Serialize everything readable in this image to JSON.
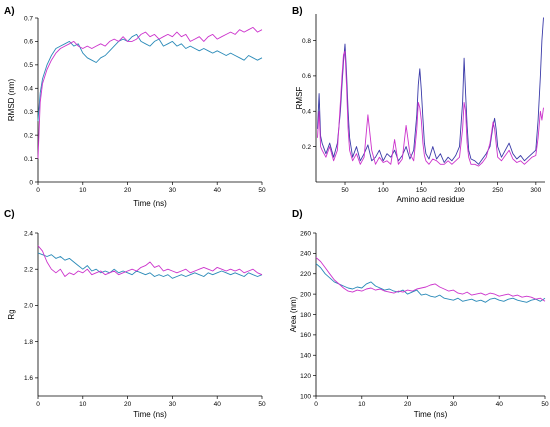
{
  "colors": {
    "series_magenta": "#cc33cc",
    "series_teal": "#2a8ab8",
    "series_navy": "#3a3aa8"
  },
  "chart_data": [
    {
      "panel_label": "A)",
      "type": "line",
      "xlabel": "Time (ns)",
      "ylabel": "RMSD (nm)",
      "xlim": [
        0,
        50
      ],
      "ylim": [
        0,
        0.7
      ],
      "xticks": [
        0,
        10,
        20,
        30,
        40,
        50
      ],
      "yticks": [
        0,
        0.1,
        0.2,
        0.3,
        0.4,
        0.5,
        0.6,
        0.7
      ],
      "series": [
        {
          "color": "#2a8ab8",
          "x": [
            0,
            0.5,
            1,
            2,
            3,
            4,
            5,
            6,
            7,
            8,
            9,
            10,
            11,
            12,
            13,
            14,
            15,
            16,
            17,
            18,
            19,
            20,
            21,
            22,
            23,
            24,
            25,
            26,
            27,
            28,
            29,
            30,
            31,
            32,
            33,
            34,
            35,
            36,
            37,
            38,
            39,
            40,
            41,
            42,
            43,
            44,
            45,
            46,
            47,
            48,
            49,
            50
          ],
          "y": [
            0.26,
            0.38,
            0.44,
            0.5,
            0.54,
            0.57,
            0.58,
            0.59,
            0.6,
            0.58,
            0.59,
            0.55,
            0.53,
            0.52,
            0.51,
            0.53,
            0.54,
            0.56,
            0.58,
            0.6,
            0.61,
            0.6,
            0.62,
            0.63,
            0.6,
            0.59,
            0.58,
            0.6,
            0.61,
            0.58,
            0.59,
            0.6,
            0.58,
            0.59,
            0.57,
            0.58,
            0.57,
            0.56,
            0.57,
            0.56,
            0.55,
            0.56,
            0.55,
            0.54,
            0.55,
            0.54,
            0.53,
            0.52,
            0.54,
            0.53,
            0.52,
            0.53
          ]
        },
        {
          "color": "#cc33cc",
          "x": [
            0,
            0.5,
            1,
            2,
            3,
            4,
            5,
            6,
            7,
            8,
            9,
            10,
            11,
            12,
            13,
            14,
            15,
            16,
            17,
            18,
            19,
            20,
            21,
            22,
            23,
            24,
            25,
            26,
            27,
            28,
            29,
            30,
            31,
            32,
            33,
            34,
            35,
            36,
            37,
            38,
            39,
            40,
            41,
            42,
            43,
            44,
            45,
            46,
            47,
            48,
            49,
            50
          ],
          "y": [
            0.1,
            0.34,
            0.42,
            0.48,
            0.52,
            0.55,
            0.57,
            0.58,
            0.59,
            0.6,
            0.58,
            0.57,
            0.58,
            0.57,
            0.58,
            0.59,
            0.58,
            0.6,
            0.61,
            0.6,
            0.62,
            0.6,
            0.6,
            0.61,
            0.63,
            0.64,
            0.62,
            0.63,
            0.61,
            0.62,
            0.63,
            0.62,
            0.64,
            0.62,
            0.63,
            0.6,
            0.61,
            0.62,
            0.6,
            0.62,
            0.63,
            0.61,
            0.62,
            0.63,
            0.64,
            0.63,
            0.65,
            0.64,
            0.65,
            0.66,
            0.64,
            0.65
          ]
        }
      ]
    },
    {
      "panel_label": "B)",
      "type": "line",
      "xlabel": "Amino acid residue",
      "ylabel": "RMSF",
      "xlim": [
        12,
        312
      ],
      "ylim": [
        0,
        0.95
      ],
      "xticks": [
        50,
        100,
        150,
        200,
        250,
        300
      ],
      "yticks": [
        0.2,
        0.4,
        0.6,
        0.8
      ],
      "series": [
        {
          "color": "#3a3aa8",
          "x": [
            14,
            16,
            18,
            20,
            25,
            30,
            35,
            40,
            44,
            46,
            48,
            50,
            52,
            54,
            56,
            60,
            65,
            70,
            75,
            80,
            85,
            90,
            95,
            100,
            105,
            110,
            115,
            120,
            125,
            130,
            135,
            140,
            144,
            146,
            148,
            150,
            152,
            154,
            156,
            160,
            165,
            170,
            175,
            180,
            185,
            190,
            195,
            200,
            204,
            206,
            208,
            210,
            212,
            215,
            220,
            225,
            230,
            235,
            240,
            244,
            246,
            248,
            250,
            255,
            260,
            265,
            270,
            275,
            280,
            285,
            290,
            295,
            300,
            303,
            306,
            308,
            310
          ],
          "y": [
            0.3,
            0.5,
            0.26,
            0.22,
            0.16,
            0.22,
            0.14,
            0.22,
            0.4,
            0.55,
            0.68,
            0.78,
            0.62,
            0.4,
            0.25,
            0.14,
            0.2,
            0.12,
            0.16,
            0.21,
            0.12,
            0.14,
            0.18,
            0.12,
            0.16,
            0.14,
            0.18,
            0.12,
            0.15,
            0.2,
            0.13,
            0.18,
            0.38,
            0.55,
            0.64,
            0.52,
            0.36,
            0.22,
            0.16,
            0.13,
            0.2,
            0.13,
            0.16,
            0.11,
            0.14,
            0.12,
            0.15,
            0.2,
            0.45,
            0.7,
            0.5,
            0.32,
            0.18,
            0.13,
            0.12,
            0.1,
            0.13,
            0.16,
            0.2,
            0.32,
            0.36,
            0.3,
            0.2,
            0.14,
            0.18,
            0.22,
            0.16,
            0.13,
            0.15,
            0.12,
            0.14,
            0.16,
            0.18,
            0.35,
            0.6,
            0.8,
            0.93
          ]
        },
        {
          "color": "#cc33cc",
          "x": [
            14,
            16,
            18,
            20,
            25,
            30,
            35,
            40,
            44,
            46,
            48,
            50,
            52,
            54,
            56,
            60,
            65,
            70,
            75,
            80,
            85,
            90,
            95,
            100,
            105,
            110,
            115,
            120,
            125,
            130,
            135,
            140,
            144,
            146,
            148,
            150,
            152,
            154,
            156,
            160,
            165,
            170,
            175,
            180,
            185,
            190,
            195,
            200,
            204,
            206,
            208,
            210,
            212,
            215,
            220,
            225,
            230,
            235,
            240,
            244,
            246,
            248,
            250,
            255,
            260,
            265,
            270,
            275,
            280,
            285,
            290,
            295,
            300,
            303,
            306,
            308,
            310
          ],
          "y": [
            0.25,
            0.4,
            0.2,
            0.18,
            0.14,
            0.2,
            0.12,
            0.18,
            0.45,
            0.6,
            0.72,
            0.74,
            0.55,
            0.3,
            0.18,
            0.12,
            0.16,
            0.1,
            0.14,
            0.38,
            0.18,
            0.1,
            0.14,
            0.11,
            0.12,
            0.1,
            0.24,
            0.1,
            0.13,
            0.32,
            0.16,
            0.12,
            0.3,
            0.45,
            0.42,
            0.35,
            0.22,
            0.15,
            0.12,
            0.1,
            0.13,
            0.12,
            0.1,
            0.1,
            0.12,
            0.1,
            0.12,
            0.14,
            0.3,
            0.45,
            0.4,
            0.22,
            0.14,
            0.1,
            0.1,
            0.09,
            0.11,
            0.14,
            0.22,
            0.34,
            0.3,
            0.22,
            0.14,
            0.12,
            0.15,
            0.18,
            0.13,
            0.11,
            0.12,
            0.1,
            0.12,
            0.14,
            0.15,
            0.25,
            0.4,
            0.35,
            0.42
          ]
        }
      ]
    },
    {
      "panel_label": "C)",
      "type": "line",
      "xlabel": "Time (ns)",
      "ylabel": "Rg",
      "xlim": [
        0,
        50
      ],
      "ylim": [
        1.5,
        2.4
      ],
      "xticks": [
        0,
        10,
        20,
        30,
        40,
        50
      ],
      "yticks": [
        1.6,
        1.8,
        2.0,
        2.2,
        2.4
      ],
      "series": [
        {
          "color": "#2a8ab8",
          "x": [
            0,
            1,
            2,
            3,
            4,
            5,
            6,
            7,
            8,
            9,
            10,
            11,
            12,
            13,
            14,
            15,
            16,
            17,
            18,
            19,
            20,
            21,
            22,
            23,
            24,
            25,
            26,
            27,
            28,
            29,
            30,
            31,
            32,
            33,
            34,
            35,
            36,
            37,
            38,
            39,
            40,
            41,
            42,
            43,
            44,
            45,
            46,
            47,
            48,
            49,
            50
          ],
          "y": [
            2.29,
            2.28,
            2.27,
            2.28,
            2.26,
            2.27,
            2.25,
            2.26,
            2.24,
            2.22,
            2.2,
            2.22,
            2.19,
            2.2,
            2.18,
            2.19,
            2.18,
            2.2,
            2.18,
            2.19,
            2.18,
            2.17,
            2.19,
            2.18,
            2.17,
            2.18,
            2.16,
            2.17,
            2.16,
            2.17,
            2.15,
            2.16,
            2.17,
            2.16,
            2.17,
            2.18,
            2.17,
            2.16,
            2.18,
            2.17,
            2.18,
            2.19,
            2.18,
            2.17,
            2.18,
            2.17,
            2.16,
            2.18,
            2.17,
            2.16,
            2.17
          ]
        },
        {
          "color": "#cc33cc",
          "x": [
            0,
            1,
            2,
            3,
            4,
            5,
            6,
            7,
            8,
            9,
            10,
            11,
            12,
            13,
            14,
            15,
            16,
            17,
            18,
            19,
            20,
            21,
            22,
            23,
            24,
            25,
            26,
            27,
            28,
            29,
            30,
            31,
            32,
            33,
            34,
            35,
            36,
            37,
            38,
            39,
            40,
            41,
            42,
            43,
            44,
            45,
            46,
            47,
            48,
            49,
            50
          ],
          "y": [
            2.33,
            2.3,
            2.24,
            2.2,
            2.18,
            2.2,
            2.16,
            2.18,
            2.17,
            2.19,
            2.18,
            2.2,
            2.17,
            2.18,
            2.19,
            2.17,
            2.18,
            2.19,
            2.17,
            2.18,
            2.19,
            2.2,
            2.19,
            2.21,
            2.22,
            2.24,
            2.21,
            2.22,
            2.19,
            2.2,
            2.19,
            2.18,
            2.19,
            2.2,
            2.18,
            2.19,
            2.2,
            2.21,
            2.2,
            2.19,
            2.21,
            2.2,
            2.19,
            2.2,
            2.19,
            2.2,
            2.18,
            2.19,
            2.2,
            2.18,
            2.17
          ]
        }
      ]
    },
    {
      "panel_label": "D)",
      "type": "line",
      "xlabel": "Time (ns)",
      "ylabel": "Area (nm)",
      "xlim": [
        0,
        50
      ],
      "ylim": [
        100,
        260
      ],
      "xticks": [
        0,
        10,
        20,
        30,
        40,
        50
      ],
      "yticks": [
        100,
        120,
        140,
        160,
        180,
        200,
        220,
        240,
        260
      ],
      "series": [
        {
          "color": "#2a8ab8",
          "x": [
            0,
            1,
            2,
            3,
            4,
            5,
            6,
            7,
            8,
            9,
            10,
            11,
            12,
            13,
            14,
            15,
            16,
            17,
            18,
            19,
            20,
            21,
            22,
            23,
            24,
            25,
            26,
            27,
            28,
            29,
            30,
            31,
            32,
            33,
            34,
            35,
            36,
            37,
            38,
            39,
            40,
            41,
            42,
            43,
            44,
            45,
            46,
            47,
            48,
            49,
            50
          ],
          "y": [
            230,
            226,
            220,
            216,
            212,
            210,
            208,
            206,
            205,
            207,
            206,
            210,
            212,
            208,
            206,
            204,
            205,
            203,
            202,
            204,
            200,
            202,
            204,
            199,
            200,
            198,
            197,
            199,
            196,
            195,
            194,
            196,
            193,
            194,
            195,
            193,
            194,
            192,
            195,
            196,
            194,
            193,
            195,
            196,
            194,
            193,
            192,
            194,
            195,
            193,
            196
          ]
        },
        {
          "color": "#cc33cc",
          "x": [
            0,
            1,
            2,
            3,
            4,
            5,
            6,
            7,
            8,
            9,
            10,
            11,
            12,
            13,
            14,
            15,
            16,
            17,
            18,
            19,
            20,
            21,
            22,
            23,
            24,
            25,
            26,
            27,
            28,
            29,
            30,
            31,
            32,
            33,
            34,
            35,
            36,
            37,
            38,
            39,
            40,
            41,
            42,
            43,
            44,
            45,
            46,
            47,
            48,
            49,
            50
          ],
          "y": [
            236,
            232,
            226,
            220,
            214,
            210,
            206,
            203,
            202,
            204,
            203,
            205,
            206,
            204,
            205,
            203,
            202,
            201,
            203,
            202,
            204,
            203,
            205,
            206,
            207,
            209,
            210,
            207,
            205,
            203,
            204,
            201,
            200,
            202,
            199,
            200,
            201,
            199,
            201,
            200,
            198,
            199,
            200,
            198,
            199,
            197,
            198,
            197,
            195,
            196,
            193
          ]
        }
      ]
    }
  ]
}
